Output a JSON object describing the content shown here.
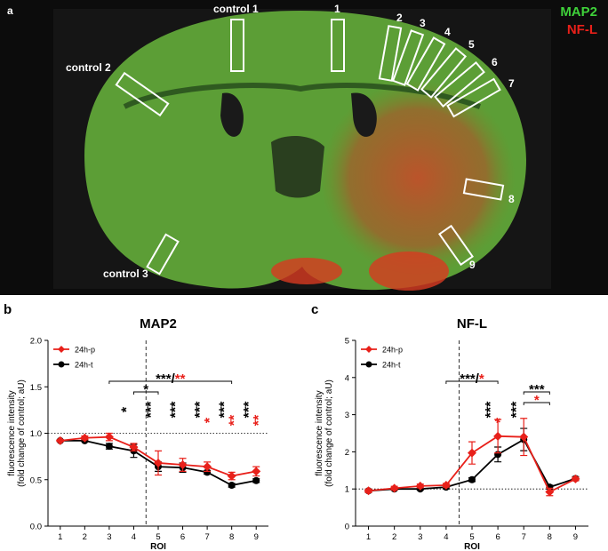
{
  "image_panel": {
    "panel": "a",
    "stains": [
      {
        "name": "MAP2",
        "color": "#3fd13a"
      },
      {
        "name": "NF-L",
        "color": "#e8201a"
      }
    ],
    "roi_labels": [
      "control 1",
      "1",
      "2",
      "3",
      "4",
      "5",
      "6",
      "7",
      "8",
      "9",
      "control 2",
      "control 3"
    ]
  },
  "chart_data": [
    {
      "type": "line",
      "panel": "b",
      "title": "MAP2",
      "y_label": [
        "fluorescence intensity",
        "(fold change of control; aU)"
      ],
      "x_label": "ROI",
      "x": [
        1,
        2,
        3,
        4,
        5,
        6,
        7,
        8,
        9
      ],
      "series": [
        {
          "name": "24h-p",
          "color": "#e8201a",
          "marker": "diamond",
          "values": [
            0.92,
            0.95,
            0.96,
            0.85,
            0.68,
            0.66,
            0.64,
            0.54,
            0.59
          ],
          "errors": [
            0.01,
            0.02,
            0.04,
            0.04,
            0.13,
            0.07,
            0.05,
            0.04,
            0.05
          ]
        },
        {
          "name": "24h-t",
          "color": "#000000",
          "marker": "circle",
          "values": [
            0.92,
            0.92,
            0.86,
            0.81,
            0.64,
            0.63,
            0.58,
            0.44,
            0.49
          ],
          "errors": [
            0.01,
            0.01,
            0.03,
            0.07,
            0.05,
            0.05,
            0.02,
            0.02,
            0.02
          ]
        }
      ],
      "xlim": [
        0.5,
        9.5
      ],
      "xticks": [
        1,
        2,
        3,
        4,
        5,
        6,
        7,
        8,
        9
      ],
      "ylim": [
        0,
        2
      ],
      "yticks": [
        {
          "value": 0,
          "label": "0.0"
        },
        {
          "value": 0.5,
          "label": "0.5"
        },
        {
          "value": 1,
          "label": "1.0"
        },
        {
          "value": 1.5,
          "label": "1.5"
        },
        {
          "value": 2,
          "label": "2.0"
        }
      ],
      "hline": 1,
      "vline": 4.5,
      "columns": [
        {
          "x": 4,
          "black": "*"
        },
        {
          "x": 5,
          "black": "***"
        },
        {
          "x": 6,
          "black": "***"
        },
        {
          "x": 7,
          "black": "***",
          "red": "*"
        },
        {
          "x": 8,
          "black": "***",
          "red": "**"
        },
        {
          "x": 9,
          "black": "***",
          "red": "**"
        }
      ],
      "brackets": [
        {
          "from": 3,
          "to": 8,
          "black": "***/",
          "red": "**"
        },
        {
          "from": 4,
          "to": 5,
          "black": "*"
        }
      ]
    },
    {
      "type": "line",
      "panel": "c",
      "title": "NF-L",
      "y_label": [
        "fluorescence intensity",
        "(fold change of control; aU)"
      ],
      "x_label": "ROI",
      "x": [
        1,
        2,
        3,
        4,
        5,
        6,
        7,
        8,
        9
      ],
      "series": [
        {
          "name": "24h-p",
          "color": "#e8201a",
          "marker": "diamond",
          "values": [
            0.95,
            1.02,
            1.08,
            1.1,
            1.97,
            2.42,
            2.4,
            0.92,
            1.27
          ],
          "errors": [
            0.05,
            0.05,
            0.05,
            0.05,
            0.3,
            0.45,
            0.5,
            0.1,
            0.05
          ]
        },
        {
          "name": "24h-t",
          "color": "#000000",
          "marker": "circle",
          "values": [
            0.95,
            1.0,
            1.0,
            1.05,
            1.25,
            1.93,
            2.33,
            1.05,
            1.28
          ],
          "errors": [
            0.03,
            0.03,
            0.03,
            0.05,
            0.05,
            0.2,
            0.3,
            0.05,
            0.05
          ]
        }
      ],
      "xlim": [
        0.5,
        9.5
      ],
      "xticks": [
        1,
        2,
        3,
        4,
        5,
        6,
        7,
        8,
        9
      ],
      "ylim": [
        0,
        5
      ],
      "yticks": [
        0,
        1,
        2,
        3,
        4,
        5
      ],
      "hline": 1,
      "vline": 4.5,
      "columns": [
        {
          "x": 6,
          "black": "***",
          "red": "*"
        },
        {
          "x": 7,
          "black": "***"
        }
      ],
      "brackets": [
        {
          "from": 4,
          "to": 6,
          "black": "***/",
          "red": "*"
        },
        {
          "from": 7,
          "to": 8,
          "black": "***"
        },
        {
          "from": 7,
          "to": 8,
          "red": "*"
        }
      ]
    }
  ]
}
